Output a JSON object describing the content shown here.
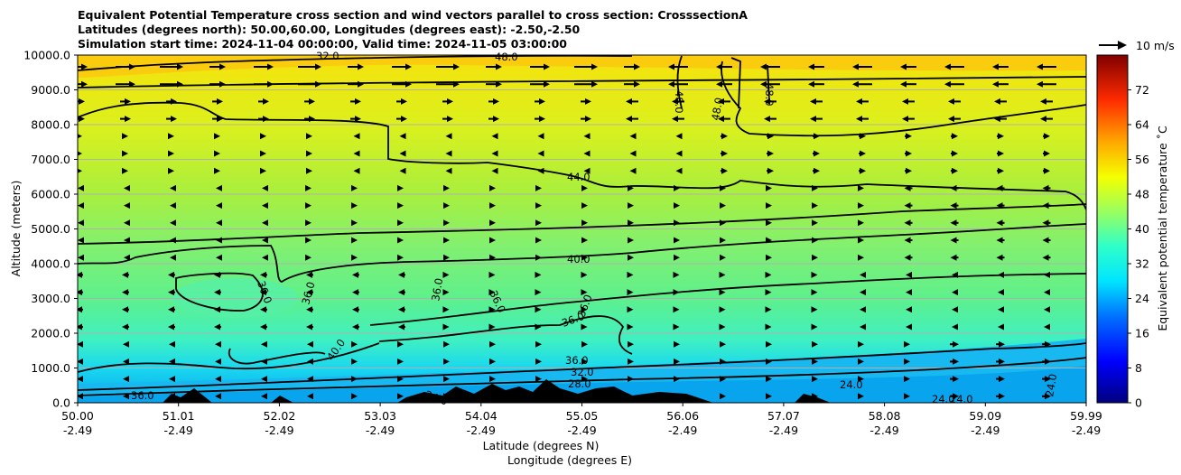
{
  "chart_data": {
    "type": "contourf",
    "title_lines": [
      "Equivalent Potential Temperature cross section and wind vectors parallel to cross section: CrosssectionA",
      "Latitudes (degrees north): 50.00,60.00, Longitudes (degrees east): -2.50,-2.50",
      "Simulation start time: 2024-11-04 00:00:00, Valid time: 2024-11-05 03:00:00"
    ],
    "ylabel": "Altitude (meters)",
    "xlabel": "Latitude (degrees N)",
    "xlabel2": "Longitude (degrees E)",
    "ylim": [
      0,
      10000
    ],
    "yticks": [
      "0.0",
      "1000.0",
      "2000.0",
      "3000.0",
      "4000.0",
      "5000.0",
      "6000.0",
      "7000.0",
      "8000.0",
      "9000.0",
      "10000.0"
    ],
    "xticks_lat": [
      "50.00",
      "51.01",
      "52.02",
      "53.03",
      "54.04",
      "55.05",
      "56.06",
      "57.07",
      "58.08",
      "59.09",
      "59.99"
    ],
    "xticks_lon": [
      "-2.49",
      "-2.49",
      "-2.49",
      "-2.49",
      "-2.49",
      "-2.49",
      "-2.49",
      "-2.49",
      "-2.49",
      "-2.49",
      "-2.49"
    ],
    "colorbar": {
      "label": "Equivalent potential temperature ˚C",
      "range": [
        0,
        80
      ],
      "ticks": [
        "0",
        "8",
        "16",
        "24",
        "32",
        "40",
        "48",
        "56",
        "64",
        "72"
      ]
    },
    "quiver_key": "10 m/s",
    "contour_labels": [
      "48.0",
      "48.0",
      "48.0",
      "48.0",
      "32.0",
      "44.0",
      "40.0",
      "36.0",
      "36.0",
      "36.0",
      "36.0",
      "36.0",
      "36.0",
      "40.0",
      "36.0",
      "32.0",
      "28.0",
      "24.0",
      "24.0",
      "24.0",
      "24.0",
      "24.0",
      "36.0"
    ],
    "approx_theta_e_by_altitude": [
      {
        "altitude": 300,
        "value": 26
      },
      {
        "altitude": 1500,
        "value": 36
      },
      {
        "altitude": 3500,
        "value": 38
      },
      {
        "altitude": 5000,
        "value": 42
      },
      {
        "altitude": 6500,
        "value": 44
      },
      {
        "altitude": 8000,
        "value": 46
      },
      {
        "altitude": 9500,
        "value": 48
      }
    ]
  }
}
